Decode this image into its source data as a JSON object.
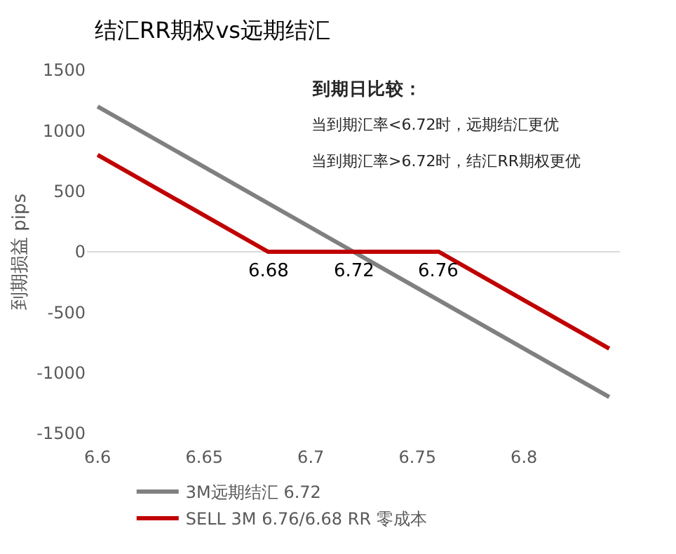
{
  "chart_data": {
    "type": "line",
    "title": "结汇RR期权vs远期结汇",
    "ylabel": "到期损益 pips",
    "series": [
      {
        "name": "3M远期结汇 6.72",
        "color": "#808080",
        "x": [
          6.6,
          6.84
        ],
        "values": [
          1200,
          -1200
        ]
      },
      {
        "name": "SELL 3M 6.76/6.68 RR 零成本",
        "color": "#c00000",
        "x": [
          6.6,
          6.65,
          6.68,
          6.76,
          6.8,
          6.84
        ],
        "values": [
          800,
          300,
          0,
          0,
          -400,
          -800
        ]
      }
    ],
    "xlim": [
      6.595,
      6.845
    ],
    "xticks": [
      {
        "value": 6.6,
        "label": "6.6"
      },
      {
        "value": 6.65,
        "label": "6.65"
      },
      {
        "value": 6.7,
        "label": "6.7"
      },
      {
        "value": 6.75,
        "label": "6.75"
      },
      {
        "value": 6.8,
        "label": "6.8"
      }
    ],
    "ylim": [
      -1500,
      1500
    ],
    "yticks": [
      -1500,
      -1000,
      -500,
      0,
      500,
      1000,
      1500
    ],
    "grid": false,
    "ref_lines": [
      {
        "axis": "y",
        "value": 0,
        "color": "#d9d9d9"
      }
    ],
    "legend": "bottom",
    "marker": "none",
    "line_style": "solid",
    "annotations": [
      {
        "text": "6.68",
        "x": 6.68,
        "y": 0
      },
      {
        "text": "6.72",
        "x": 6.72,
        "y": 0
      },
      {
        "text": "6.76",
        "x": 6.76,
        "y": 0
      },
      "到期日比较：",
      "当到期汇率<6.72时，远期结汇更优",
      "当到期汇率>6.72时，结汇RR期权更优"
    ]
  }
}
